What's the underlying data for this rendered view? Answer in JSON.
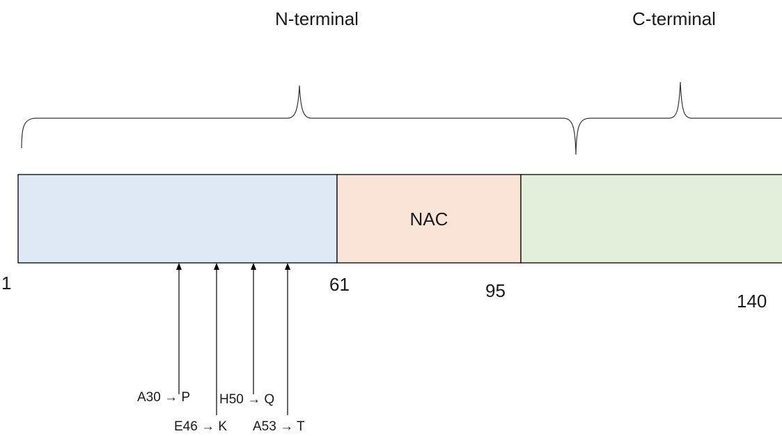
{
  "regions": {
    "n_terminal": "N-terminal",
    "c_terminal": "C-terminal"
  },
  "segments": {
    "nac_label": "NAC",
    "colors": {
      "n_terminal": "#dee9f5",
      "nac": "#fae4d7",
      "c_terminal": "#e2efda"
    }
  },
  "positions": {
    "start": "1",
    "p61": "61",
    "p95": "95",
    "p140": "140"
  },
  "mutations": {
    "a30p": "A30 → P",
    "e46k": "E46 → K",
    "h50q": "H50 → Q",
    "a53t": "A53 → T"
  }
}
